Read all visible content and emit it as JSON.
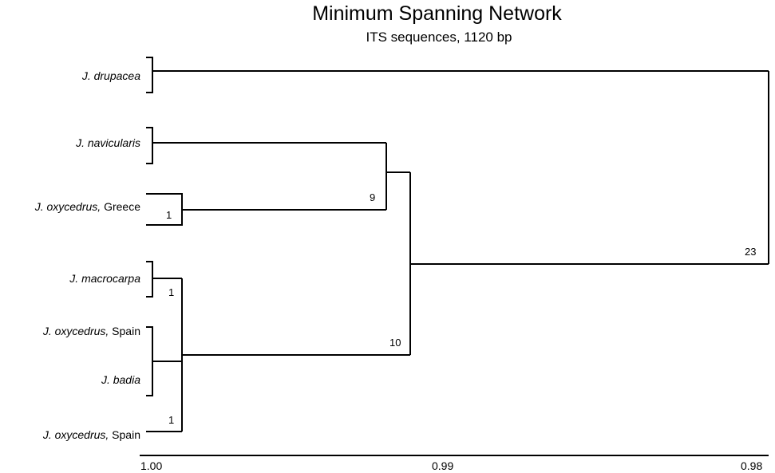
{
  "title": "Minimum Spanning Network",
  "subtitle": "ITS sequences, 1120 bp",
  "taxa": [
    {
      "italic": "J. drupacea",
      "plain": ""
    },
    {
      "italic": "J. navicularis",
      "plain": ""
    },
    {
      "italic": "J. oxycedrus,",
      "plain": " Greece"
    },
    {
      "italic": "J. macrocarpa",
      "plain": ""
    },
    {
      "italic": "J. oxycedrus,",
      "plain": " Spain"
    },
    {
      "italic": "J. badia",
      "plain": ""
    },
    {
      "italic": "J. oxycedrus,",
      "plain": " Spain"
    }
  ],
  "node_labels": {
    "greece_branch": "1",
    "macrocarpa_branch": "1",
    "spain_branch": "1",
    "nav_greece_join": "9",
    "spain_group_join": "10",
    "root_join": "23"
  },
  "axis": {
    "ticks": [
      "1.00",
      "0.99",
      "0.98"
    ],
    "min": 0.98,
    "max": 1.0
  }
}
